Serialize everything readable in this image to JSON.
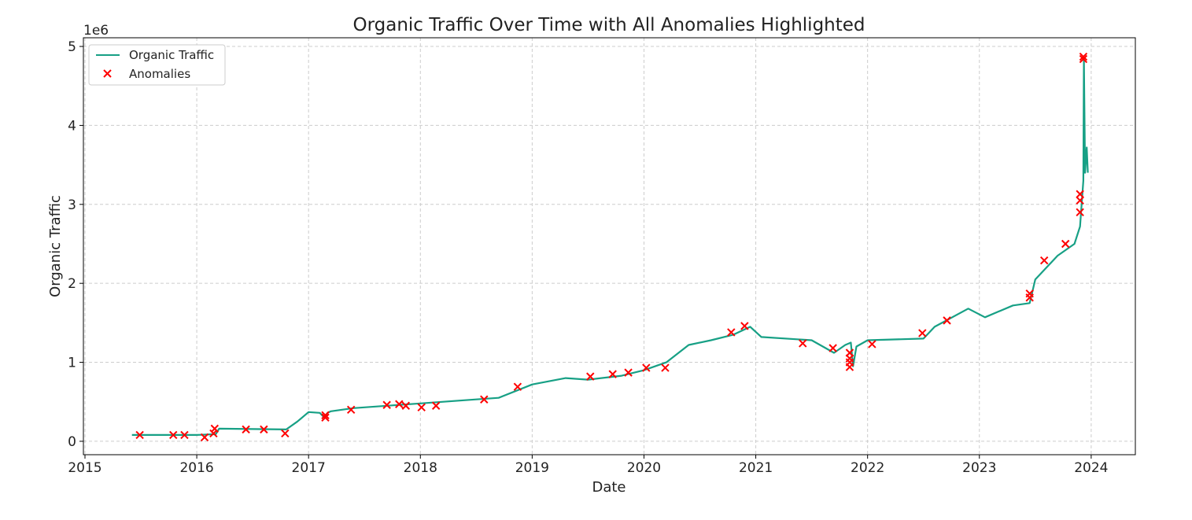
{
  "chart_data": {
    "type": "line",
    "title": "Organic Traffic Over Time with All Anomalies Highlighted",
    "xlabel": "Date",
    "ylabel": "Organic Traffic",
    "y_offset_label": "1e6",
    "xlim": [
      2014.986,
      2024.395
    ],
    "ylim": [
      -170000,
      5110000
    ],
    "x_ticks": [
      "2015",
      "2016",
      "2017",
      "2018",
      "2019",
      "2020",
      "2021",
      "2022",
      "2023",
      "2024"
    ],
    "y_ticks": [
      0,
      1,
      2,
      3,
      4,
      5
    ],
    "grid": true,
    "legend_position": "top-left",
    "colors": {
      "line": "#17a085",
      "anomalies": "#ff0000"
    },
    "series": [
      {
        "name": "Organic Traffic",
        "x": [
          2015.42,
          2016.0,
          2016.17,
          2016.2,
          2016.8,
          2016.9,
          2017.0,
          2017.1,
          2017.14,
          2017.17,
          2017.2,
          2017.4,
          2018.0,
          2018.5,
          2018.7,
          2019.0,
          2019.3,
          2019.5,
          2019.8,
          2020.0,
          2020.2,
          2020.4,
          2020.6,
          2020.8,
          2020.95,
          2021.05,
          2021.5,
          2021.7,
          2021.8,
          2021.85,
          2021.87,
          2021.9,
          2022.0,
          2022.5,
          2022.6,
          2022.9,
          2023.05,
          2023.3,
          2023.45,
          2023.5,
          2023.7,
          2023.85,
          2023.9,
          2023.93,
          2023.935,
          2023.945,
          2023.96,
          2023.97
        ],
        "values": [
          80000,
          80000,
          90000,
          160000,
          150000,
          250000,
          370000,
          360000,
          300000,
          360000,
          380000,
          420000,
          480000,
          530000,
          550000,
          720000,
          800000,
          780000,
          830000,
          900000,
          1000000,
          1220000,
          1280000,
          1350000,
          1450000,
          1320000,
          1280000,
          1120000,
          1220000,
          1250000,
          950000,
          1200000,
          1280000,
          1300000,
          1450000,
          1680000,
          1570000,
          1720000,
          1750000,
          2050000,
          2350000,
          2500000,
          2720000,
          3300000,
          4850000,
          3400000,
          3720000,
          3400000
        ]
      },
      {
        "name": "Anomalies",
        "type": "scatter",
        "x": [
          2015.49,
          2015.79,
          2015.89,
          2016.07,
          2016.15,
          2016.16,
          2016.44,
          2016.6,
          2016.79,
          2017.15,
          2017.15,
          2017.38,
          2017.7,
          2017.81,
          2017.87,
          2018.01,
          2018.14,
          2018.57,
          2018.87,
          2019.52,
          2019.72,
          2019.86,
          2020.02,
          2020.19,
          2020.78,
          2020.9,
          2021.42,
          2021.69,
          2021.84,
          2021.84,
          2021.84,
          2021.84,
          2022.04,
          2022.49,
          2022.71,
          2023.45,
          2023.45,
          2023.58,
          2023.77,
          2023.9,
          2023.9,
          2023.9,
          2023.93,
          2023.93
        ],
        "values": [
          80000,
          80000,
          80000,
          50000,
          100000,
          160000,
          150000,
          150000,
          100000,
          300000,
          330000,
          400000,
          460000,
          470000,
          450000,
          430000,
          450000,
          530000,
          690000,
          820000,
          850000,
          870000,
          930000,
          930000,
          1380000,
          1460000,
          1240000,
          1180000,
          1120000,
          1050000,
          1000000,
          940000,
          1230000,
          1370000,
          1530000,
          1820000,
          1870000,
          2290000,
          2500000,
          2900000,
          3050000,
          3130000,
          4840000,
          4870000
        ]
      }
    ]
  }
}
